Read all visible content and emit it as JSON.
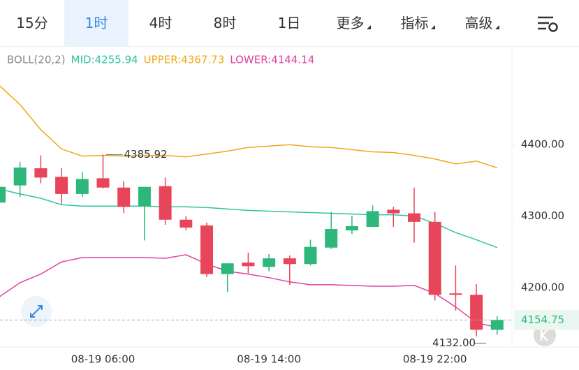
{
  "tabs": [
    "15分",
    "1时",
    "4时",
    "8时",
    "1日",
    "更多",
    "指标",
    "高级"
  ],
  "chart_data": {
    "type": "candlestick",
    "indicator_title": "BOLL(20,2)",
    "categories": [
      null,
      null,
      null,
      null,
      null,
      "08-19 06:00",
      null,
      null,
      null,
      null,
      null,
      null,
      null,
      "08-19 14:00",
      null,
      null,
      null,
      null,
      null,
      null,
      null,
      "08-19 22:00",
      null,
      null,
      null
    ],
    "candles": {
      "open": [
        4319,
        4343,
        4367,
        4355,
        4331,
        4353,
        4340,
        4314,
        4342,
        4295,
        4287,
        4219,
        4235,
        4229,
        4241,
        4233,
        4256,
        4280,
        4285,
        4309,
        4304,
        4292,
        4192,
        4190,
        4141
      ],
      "high": [
        4380,
        4376,
        4385,
        4367,
        4362,
        4385.92,
        4349,
        4341,
        4354,
        4300,
        4291,
        4234,
        4249,
        4247,
        4245,
        4267,
        4306,
        4300,
        4315,
        4313,
        4340,
        4306,
        4231,
        4205,
        4160
      ],
      "low": [
        4312,
        4327,
        4346,
        4317,
        4327,
        4339,
        4304,
        4266,
        4288,
        4280,
        4215,
        4194,
        4220,
        4223,
        4204,
        4231,
        4254,
        4275,
        4285,
        4285,
        4263,
        4182,
        4168,
        4132,
        4134
      ],
      "close": [
        4341,
        4368,
        4354,
        4331,
        4352,
        4340,
        4313,
        4341,
        4295,
        4284,
        4219,
        4234,
        4230,
        4241,
        4233,
        4257,
        4282,
        4286,
        4307,
        4304,
        4292,
        4190,
        4190,
        4141,
        4154.75
      ],
      "up_color": "#2db77b",
      "down_color": "#e8445a"
    },
    "low_label": "4132.00",
    "series": [
      {
        "name": "MID",
        "legend_label": "MID:4255.94",
        "color": "#2ec4a0",
        "values": [
          4338,
          4331,
          4325,
          4316,
          4314,
          4314,
          4314,
          4314,
          4313,
          4313,
          4312,
          4310,
          4308,
          4307,
          4306,
          4305,
          4304,
          4303,
          4302,
          4302,
          4300,
          4290,
          4277,
          4267,
          4255.94
        ]
      },
      {
        "name": "UPPER",
        "legend_label": "UPPER:4367.73",
        "color": "#f0a814",
        "values": [
          4483,
          4456,
          4421,
          4394,
          4384,
          4385,
          4384,
          4385,
          4385,
          4383,
          4387,
          4391,
          4396,
          4398,
          4400,
          4397,
          4396,
          4393,
          4390,
          4389,
          4385,
          4380,
          4373,
          4377,
          4367.73
        ]
      },
      {
        "name": "LOWER",
        "legend_label": "LOWER:4144.14",
        "color": "#e040a0",
        "values": [
          4187,
          4207,
          4219,
          4236,
          4242,
          4242,
          4242,
          4242,
          4241,
          4246,
          4233,
          4223,
          4219,
          4214,
          4208,
          4204,
          4204,
          4203,
          4202,
          4202,
          4203,
          4192,
          4173,
          4151,
          4144.14
        ]
      }
    ],
    "ylim": [
      4117,
      4536
    ],
    "yticks": [
      {
        "value": 4400,
        "label": "4400.00"
      },
      {
        "value": 4300,
        "label": "4300.00"
      },
      {
        "value": 4200,
        "label": "4200.00"
      }
    ],
    "grid": false
  }
}
